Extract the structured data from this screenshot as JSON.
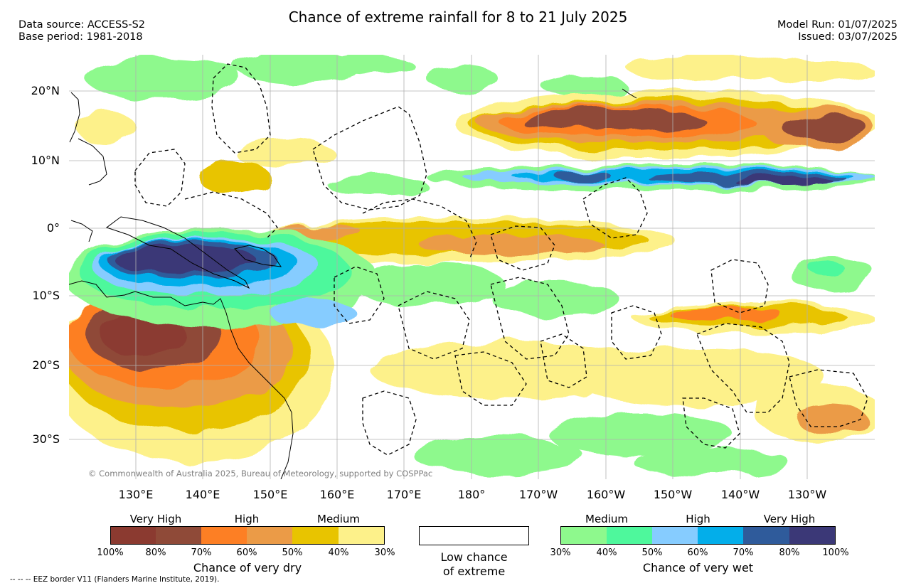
{
  "title": "Chance of extreme rainfall for 8 to 21 July 2025",
  "header": {
    "data_source": "Data source: ACCESS-S2",
    "base_period": "Base period: 1981-2018",
    "model_run": "Model Run: 01/07/2025",
    "issued": "Issued: 03/07/2025"
  },
  "axes": {
    "lat_labels": [
      "20°N",
      "10°N",
      "0°",
      "10°S",
      "20°S",
      "30°S"
    ],
    "lon_labels": [
      "130°E",
      "140°E",
      "150°E",
      "160°E",
      "170°E",
      "180°",
      "170°W",
      "160°W",
      "150°W",
      "140°W",
      "130°W"
    ]
  },
  "copyright": "© Commonwealth of Australia 2025, Bureau of Meteorology, supported by COSPPac",
  "legend": {
    "dry": {
      "categories": [
        "Very High",
        "High",
        "Medium"
      ],
      "percent_labels": [
        "100%",
        "80%",
        "70%",
        "60%",
        "50%",
        "40%",
        "30%"
      ],
      "colors": [
        "#8b3a30",
        "#8f4a38",
        "#fd7f24",
        "#eb9b47",
        "#e8c400",
        "#fdf18a"
      ],
      "caption": "Chance of very dry"
    },
    "low": {
      "line1": "Low chance",
      "line2": "of extreme"
    },
    "wet": {
      "categories": [
        "Medium",
        "High",
        "Very High"
      ],
      "percent_labels": [
        "30%",
        "40%",
        "50%",
        "60%",
        "70%",
        "80%",
        "100%"
      ],
      "colors": [
        "#8ef98d",
        "#4ef89c",
        "#86ccff",
        "#03aeea",
        "#2f5b9b",
        "#3b3877"
      ],
      "caption": "Chance of very wet"
    }
  },
  "eez_note": "--  --  -- EEZ border V11 (Flanders Marine Institute, 2019)."
}
